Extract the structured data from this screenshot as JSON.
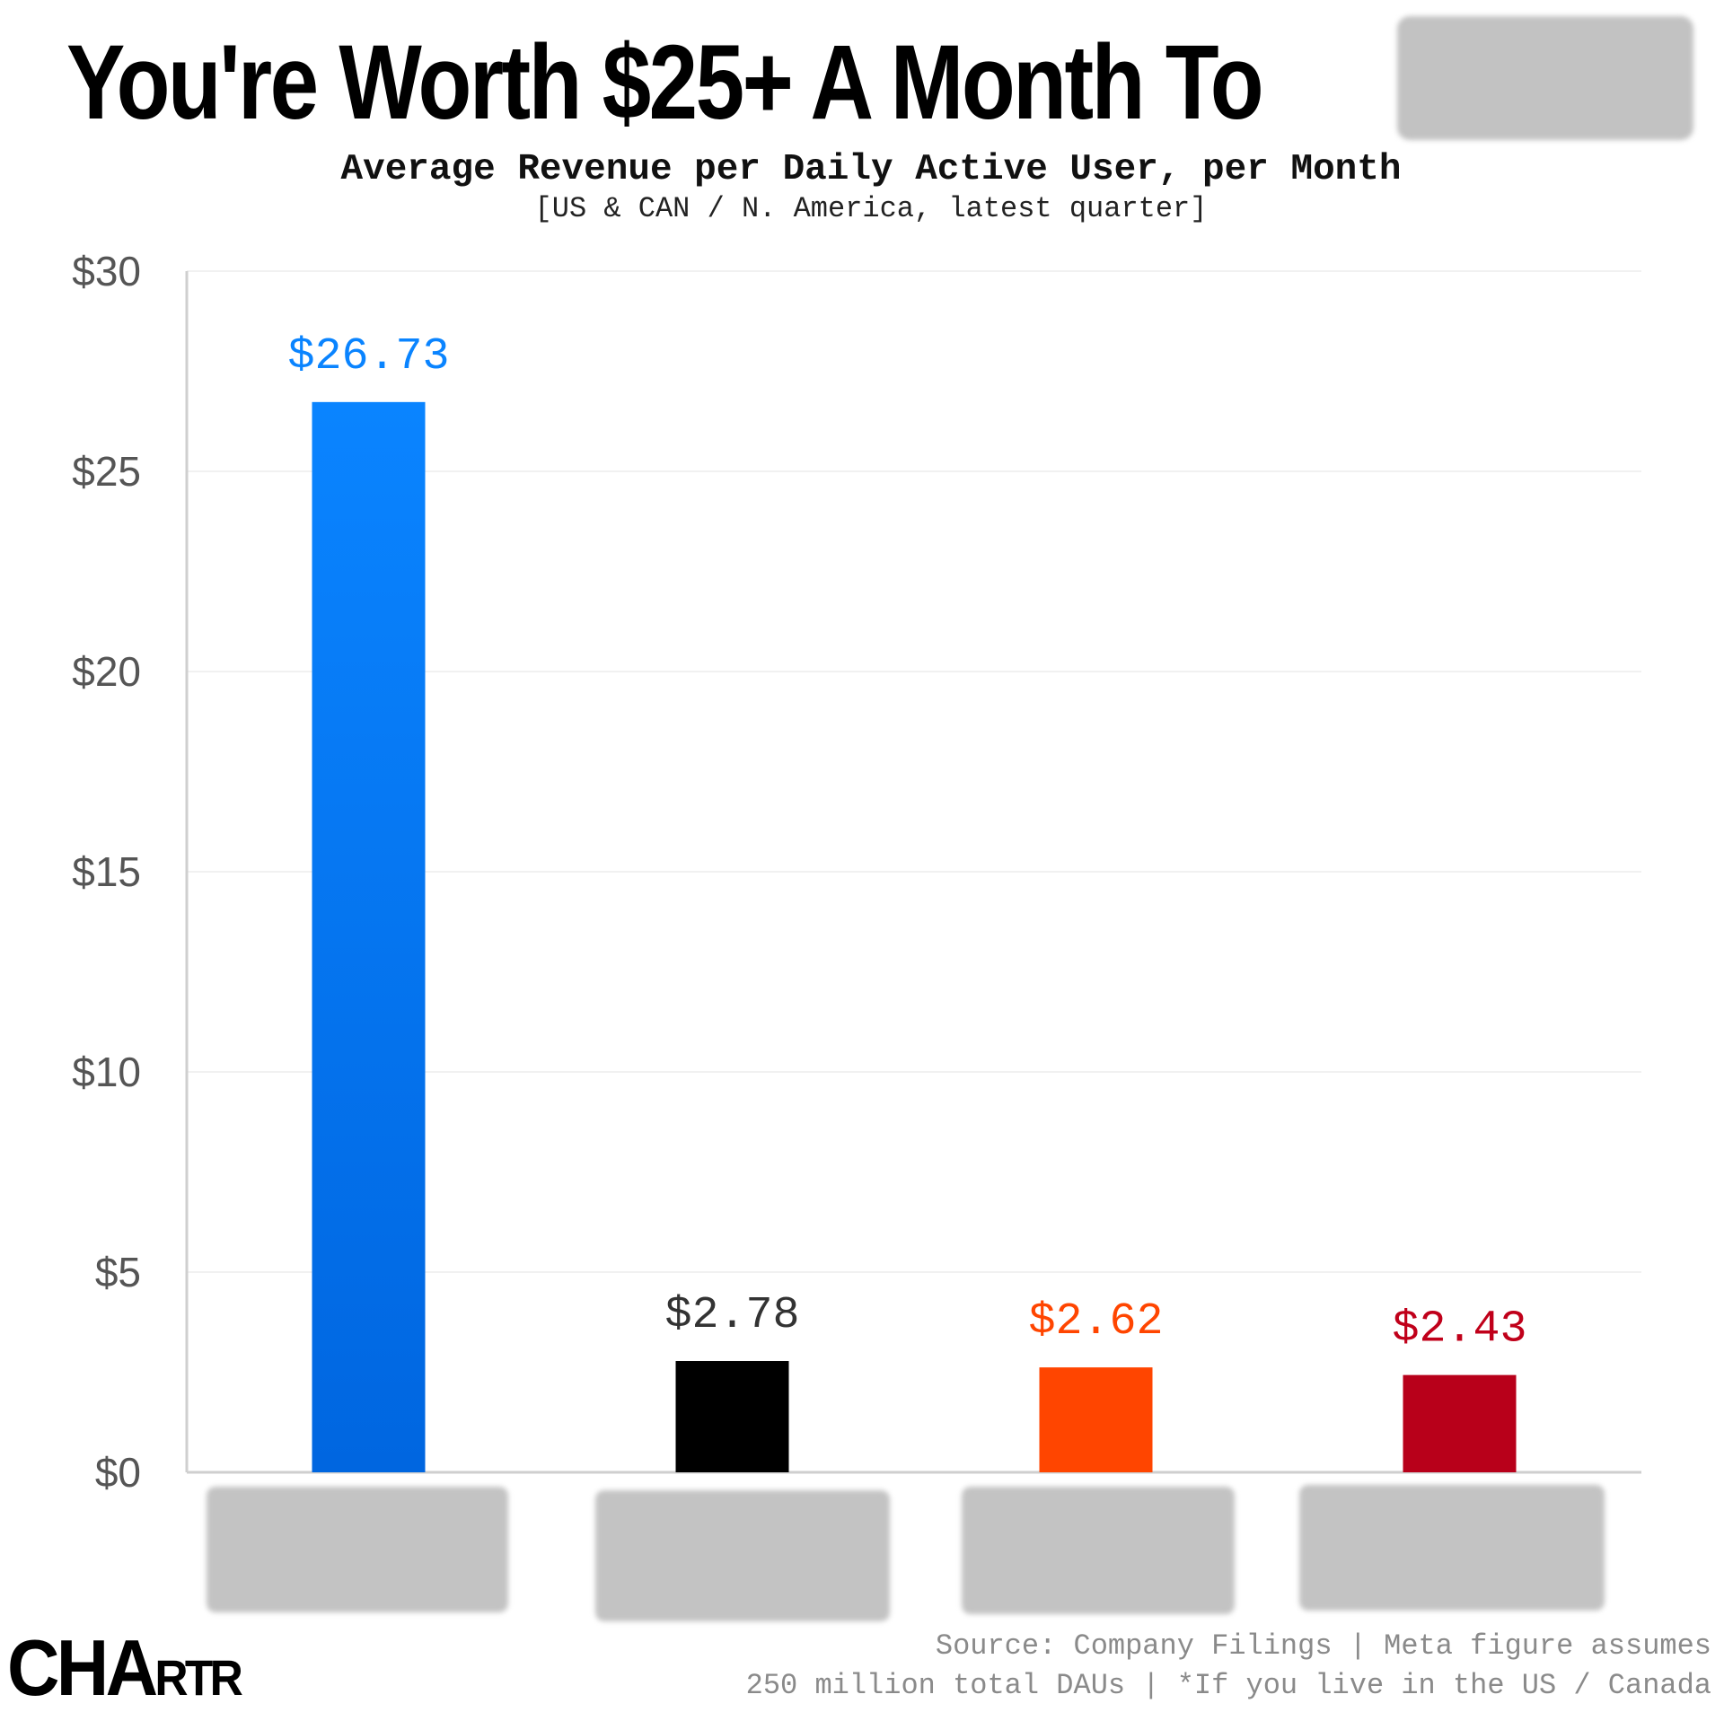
{
  "headline": "You're Worth $25+ A Month To",
  "subtitle": "Average Revenue per Daily Active User, per Month",
  "subtitle_note": "[US & CAN / N. America, latest quarter]",
  "source_line_1": "Source: Company Filings | Meta figure assumes",
  "source_line_2": "250 million total DAUs  | *If you live in the US / Canada",
  "logo": {
    "big": "CHA",
    "small": "RTR"
  },
  "chart_data": {
    "type": "bar",
    "title": "Average Revenue per Daily Active User, per Month",
    "subtitle": "[US & CAN / N. America, latest quarter]",
    "ylabel": "",
    "xlabel": "",
    "ylim": [
      0,
      30
    ],
    "yticks": [
      0,
      5,
      10,
      15,
      20,
      25,
      30
    ],
    "ytick_labels": [
      "$0",
      "$5",
      "$10",
      "$15",
      "$20",
      "$25",
      "$30"
    ],
    "grid": true,
    "values": [
      26.73,
      2.78,
      2.62,
      2.43
    ],
    "value_labels": [
      "$26.73",
      "$2.78",
      "$2.62",
      "$2.43"
    ],
    "bar_colors": [
      "#0070ea",
      "#000000",
      "#ff4500",
      "#b8001a"
    ],
    "label_colors": [
      "#0a84ff",
      "#333333",
      "#ff4500",
      "#c0001a"
    ],
    "categories_redacted": true
  }
}
